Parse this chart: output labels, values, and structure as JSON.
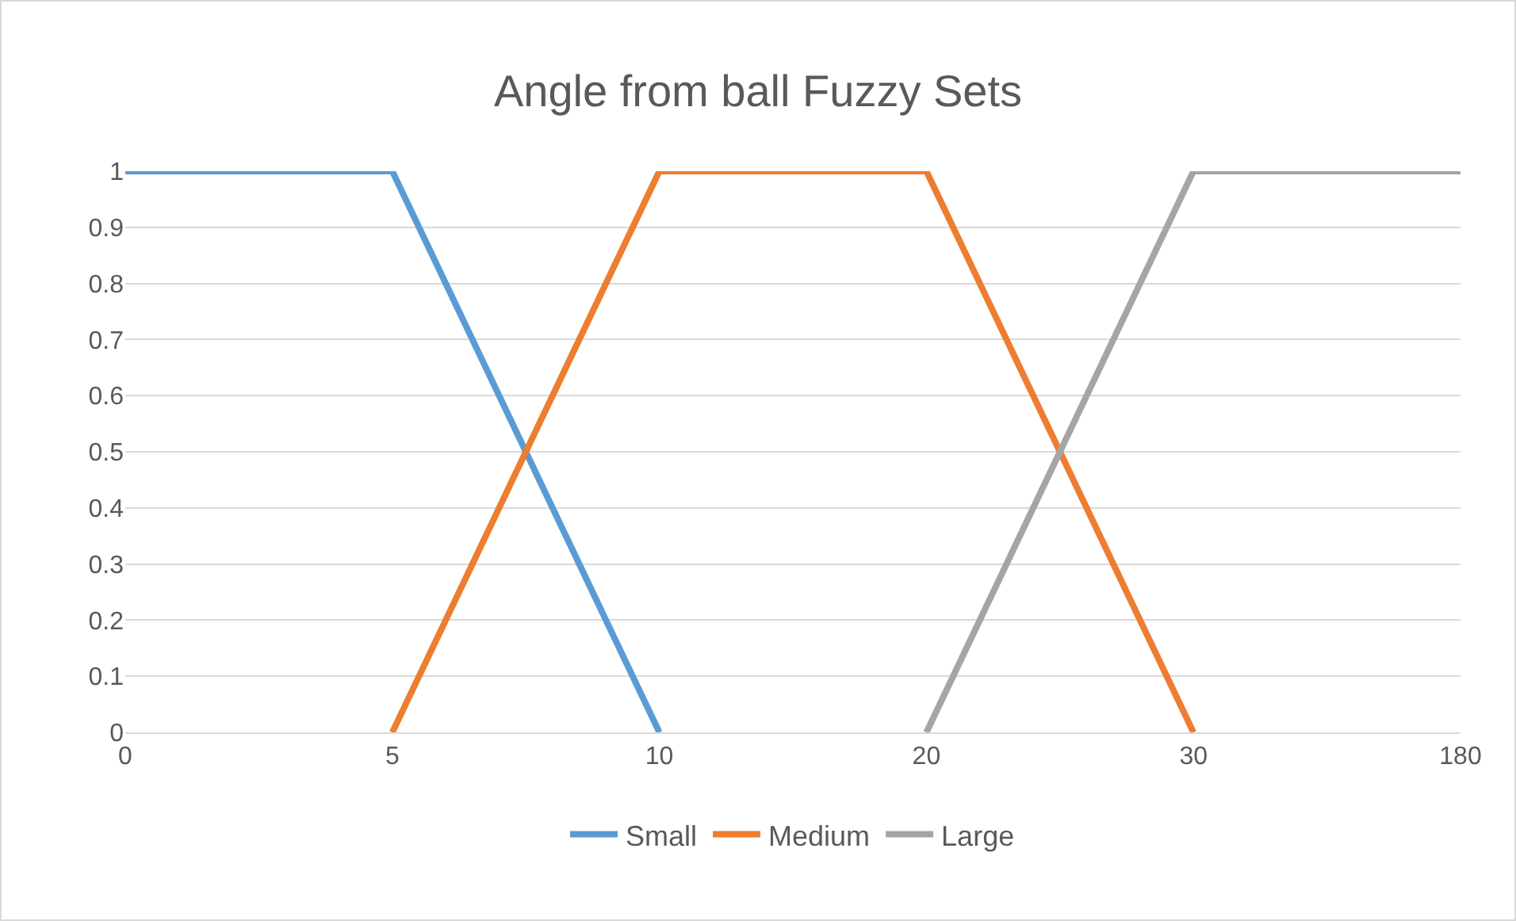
{
  "chart_data": {
    "type": "line",
    "title": "Angle from ball Fuzzy Sets",
    "categories": [
      "0",
      "5",
      "10",
      "20",
      "30",
      "180"
    ],
    "series": [
      {
        "name": "Small",
        "color": "#5b9bd5",
        "values": [
          1,
          1,
          0,
          null,
          null,
          null
        ]
      },
      {
        "name": "Medium",
        "color": "#ed7d31",
        "values": [
          null,
          0,
          1,
          1,
          0,
          null
        ]
      },
      {
        "name": "Large",
        "color": "#a5a5a5",
        "values": [
          null,
          null,
          null,
          0,
          1,
          1
        ]
      }
    ],
    "ylim": [
      0,
      1
    ],
    "yticks": [
      0,
      0.1,
      0.2,
      0.3,
      0.4,
      0.5,
      0.6,
      0.7,
      0.8,
      0.9,
      1
    ],
    "grid": "y",
    "legend": "bottom",
    "marker": "none",
    "line_style": "solid"
  }
}
